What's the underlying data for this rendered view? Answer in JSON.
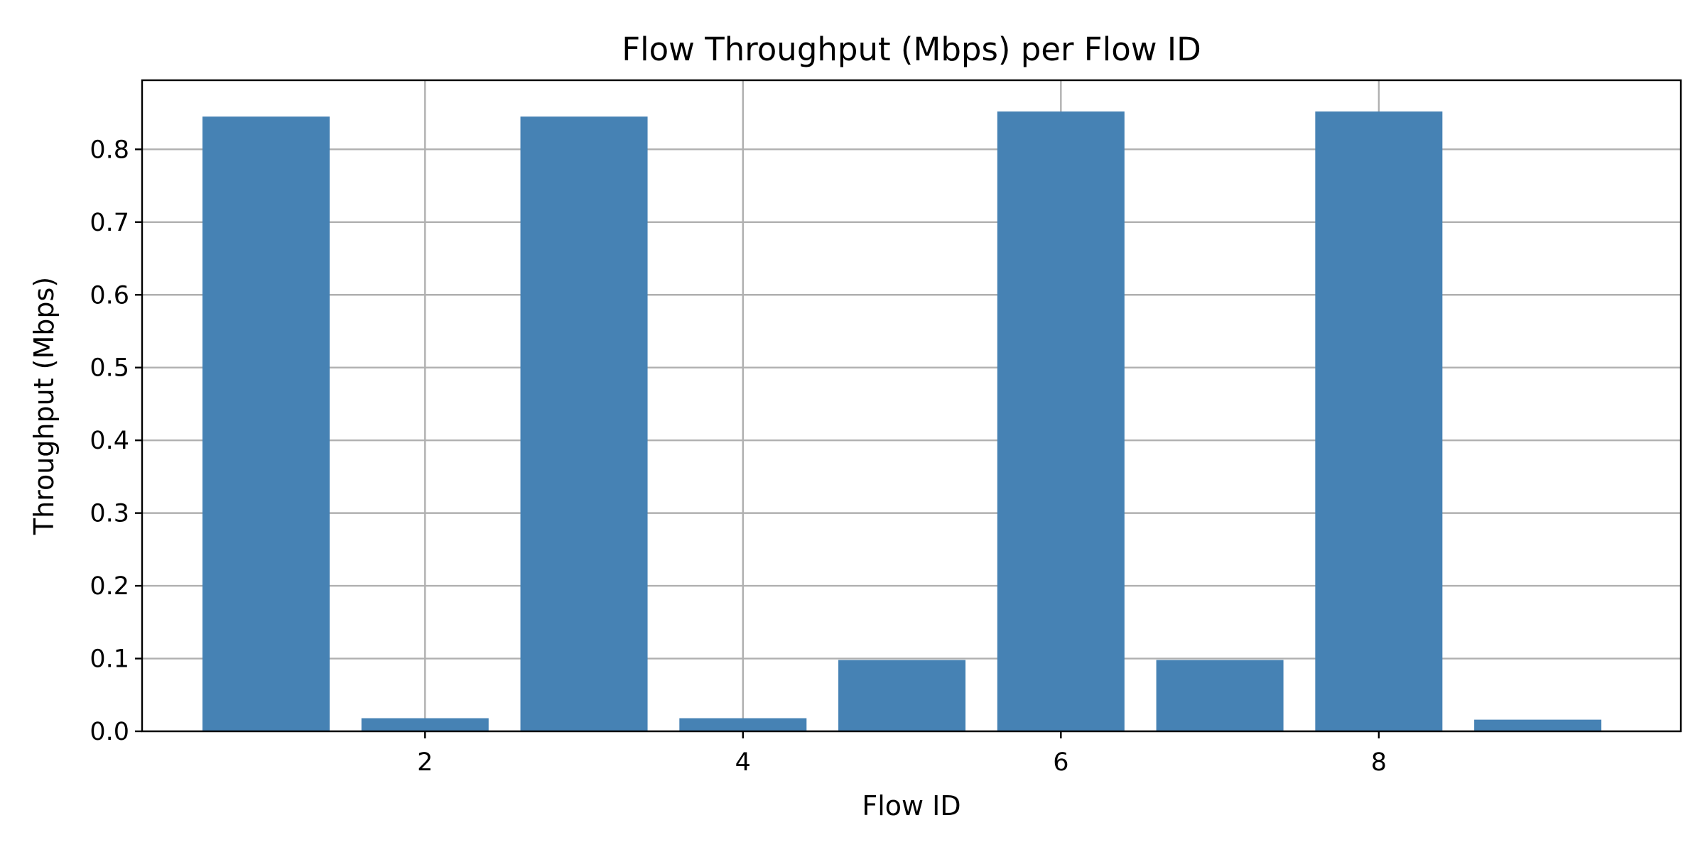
{
  "chart_data": {
    "type": "bar",
    "title": "Flow Throughput (Mbps) per Flow ID",
    "xlabel": "Flow ID",
    "ylabel": "Throughput (Mbps)",
    "x": [
      1,
      2,
      3,
      4,
      5,
      6,
      7,
      8,
      9
    ],
    "values": [
      0.845,
      0.018,
      0.845,
      0.018,
      0.098,
      0.852,
      0.098,
      0.852,
      0.016
    ],
    "xlim": [
      0.22,
      9.9
    ],
    "ylim": [
      0,
      0.895
    ],
    "xticks": [
      2,
      4,
      6,
      8
    ],
    "xtick_labels": [
      "2",
      "4",
      "6",
      "8"
    ],
    "yticks": [
      0.0,
      0.1,
      0.2,
      0.3,
      0.4,
      0.5,
      0.6,
      0.7,
      0.8
    ],
    "ytick_labels": [
      "0.0",
      "0.1",
      "0.2",
      "0.3",
      "0.4",
      "0.5",
      "0.6",
      "0.7",
      "0.8"
    ],
    "bar_width": 0.8,
    "grid": true,
    "legend": "none",
    "colors": {
      "bar": "#4682b4"
    }
  }
}
